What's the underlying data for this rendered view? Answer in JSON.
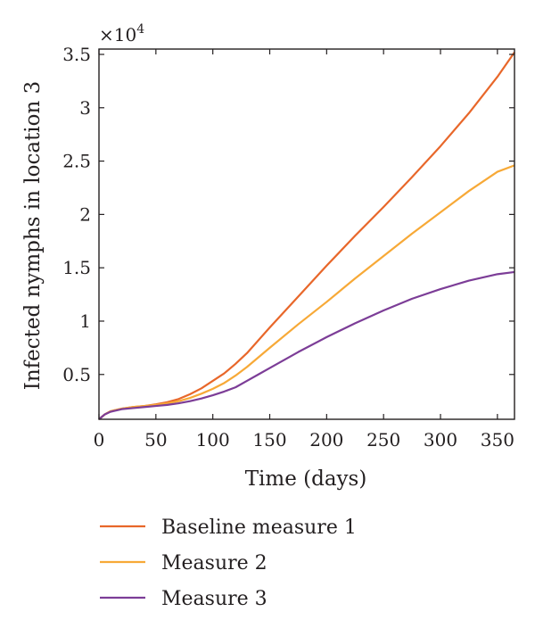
{
  "chart_data": {
    "type": "line",
    "title": "",
    "xlabel": "Time (days)",
    "ylabel": "Infected nymphs in location 3",
    "y_multiplier_label": "×10",
    "y_multiplier_exponent": "4",
    "xlim": [
      0,
      365
    ],
    "ylim": [
      800,
      35500
    ],
    "xticks": [
      0,
      50,
      100,
      150,
      200,
      250,
      300,
      350
    ],
    "xtick_labels": [
      "0",
      "50",
      "100",
      "150",
      "200",
      "250",
      "300",
      "350"
    ],
    "yticks": [
      5000,
      10000,
      15000,
      20000,
      25000,
      30000,
      35000
    ],
    "ytick_labels": [
      "0.5",
      "1",
      "1.5",
      "2",
      "2.5",
      "3",
      "3.5"
    ],
    "grid": false,
    "legend_position": "below",
    "series": [
      {
        "name": "Baseline measure 1",
        "color": "#e8672a",
        "x": [
          0,
          5,
          10,
          20,
          30,
          40,
          50,
          60,
          70,
          80,
          90,
          100,
          110,
          120,
          130,
          140,
          150,
          175,
          200,
          225,
          250,
          275,
          300,
          325,
          350,
          365
        ],
        "y": [
          800,
          1250,
          1550,
          1800,
          1950,
          2050,
          2200,
          2400,
          2700,
          3150,
          3700,
          4400,
          5100,
          6000,
          7000,
          8200,
          9400,
          12300,
          15200,
          18000,
          20700,
          23500,
          26400,
          29500,
          32900,
          35200
        ]
      },
      {
        "name": "Measure 2",
        "color": "#f7a937",
        "x": [
          0,
          5,
          10,
          20,
          30,
          40,
          50,
          60,
          70,
          80,
          90,
          100,
          110,
          120,
          130,
          140,
          150,
          175,
          200,
          225,
          250,
          275,
          300,
          325,
          350,
          365
        ],
        "y": [
          800,
          1250,
          1550,
          1800,
          1950,
          2050,
          2150,
          2300,
          2500,
          2800,
          3200,
          3650,
          4200,
          4900,
          5700,
          6600,
          7500,
          9700,
          11800,
          14000,
          16100,
          18200,
          20200,
          22200,
          24000,
          24600
        ]
      },
      {
        "name": "Measure 3",
        "color": "#7c3d97",
        "x": [
          0,
          5,
          10,
          20,
          30,
          40,
          50,
          60,
          70,
          80,
          90,
          100,
          110,
          120,
          130,
          140,
          150,
          175,
          200,
          225,
          250,
          275,
          300,
          325,
          350,
          365
        ],
        "y": [
          800,
          1250,
          1500,
          1750,
          1850,
          1950,
          2050,
          2150,
          2300,
          2500,
          2750,
          3050,
          3400,
          3800,
          4400,
          5000,
          5600,
          7100,
          8500,
          9800,
          11000,
          12100,
          13000,
          13800,
          14400,
          14600
        ]
      }
    ]
  }
}
